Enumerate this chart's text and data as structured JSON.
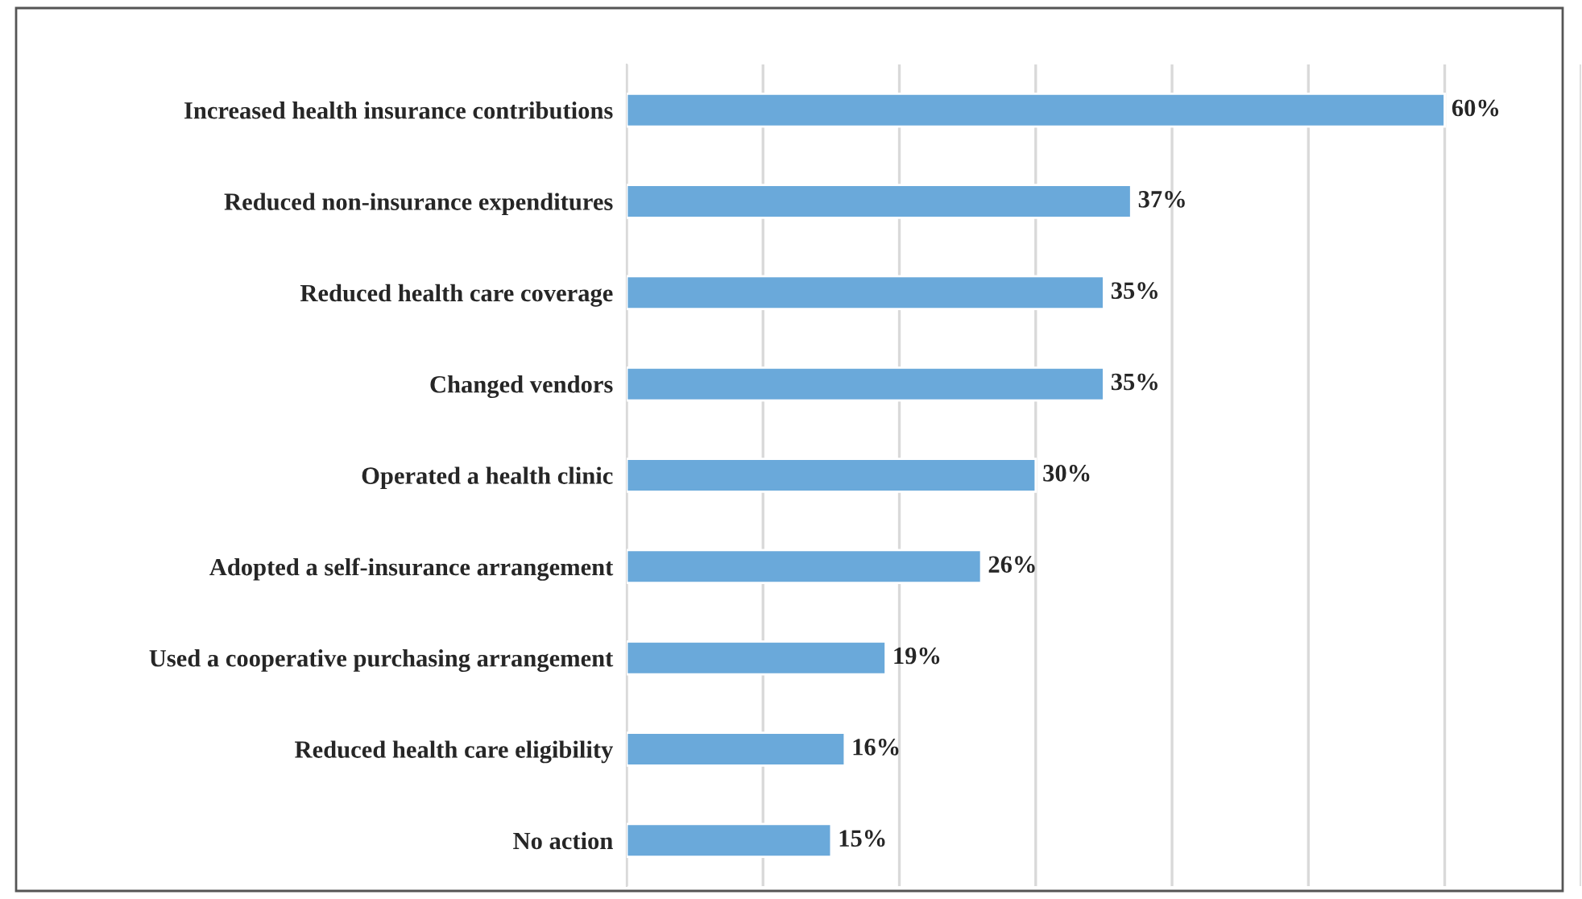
{
  "chart_data": {
    "type": "bar",
    "orientation": "horizontal",
    "categories": [
      "Increased health insurance contributions",
      "Reduced non-insurance expenditures",
      "Reduced health care coverage",
      "Changed vendors",
      "Operated a health clinic",
      "Adopted a self-insurance arrangement",
      "Used a cooperative purchasing arrangement",
      "Reduced health care eligibility",
      "No action"
    ],
    "values": [
      60,
      37,
      35,
      35,
      30,
      26,
      19,
      16,
      15
    ],
    "value_labels": [
      "60%",
      "37%",
      "35%",
      "35%",
      "30%",
      "26%",
      "19%",
      "16%",
      "15%"
    ],
    "color": "#6aa9da",
    "xlim": [
      0,
      70
    ],
    "xticks": [
      {
        "value": 0,
        "label": null
      },
      {
        "value": 10,
        "label": null
      },
      {
        "value": 20,
        "label": null
      },
      {
        "value": 30,
        "label": null
      },
      {
        "value": 40,
        "label": null
      },
      {
        "value": 50,
        "label": null
      },
      {
        "value": 60,
        "label": null
      },
      {
        "value": 70,
        "label": null
      }
    ],
    "tick_labels": "y",
    "grid": "x",
    "legend": false
  }
}
